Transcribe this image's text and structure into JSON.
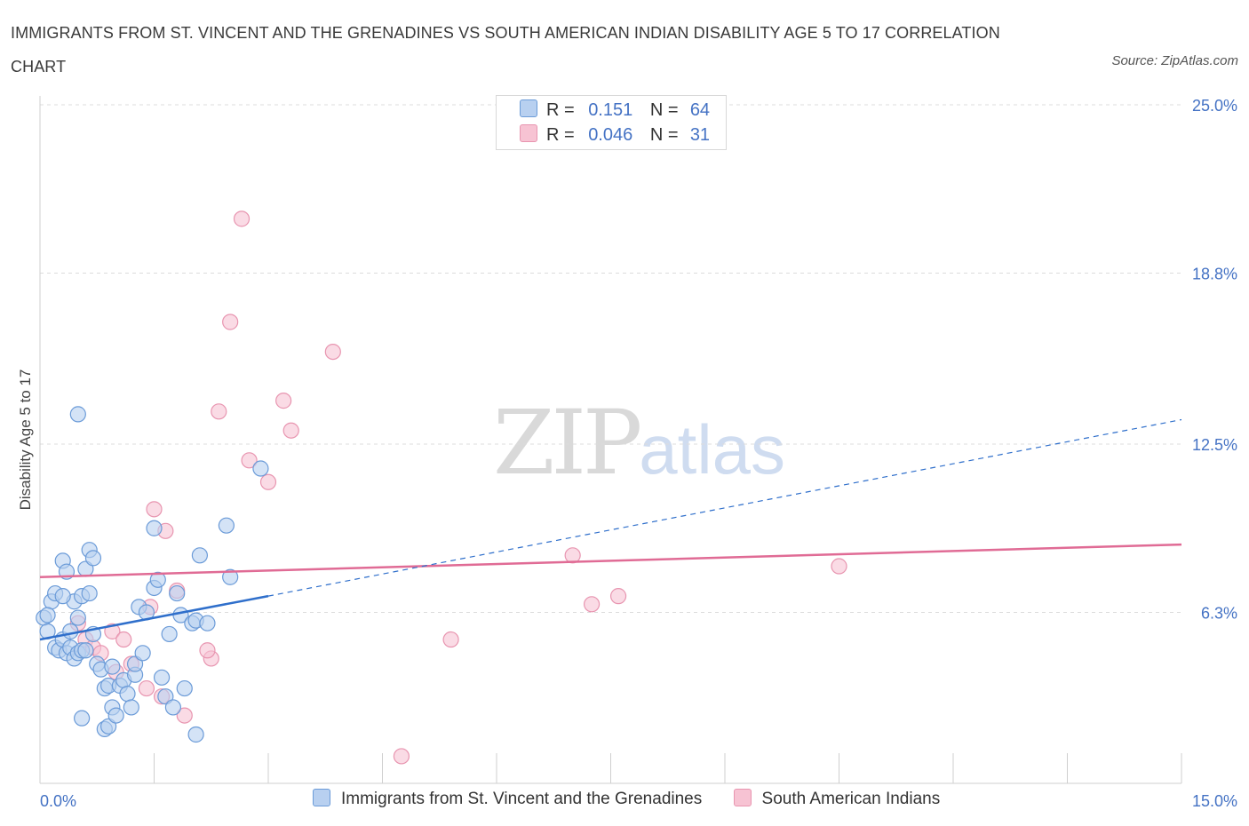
{
  "title": "IMMIGRANTS FROM ST. VINCENT AND THE GRENADINES VS SOUTH AMERICAN INDIAN DISABILITY AGE 5 TO 17 CORRELATION CHART",
  "source": "Source: ZipAtlas.com",
  "watermark": {
    "zip": "ZIP",
    "atlas": "atlas"
  },
  "legend": {
    "rows": [
      {
        "r_label": "R =",
        "r_value": "0.151",
        "n_label": "N =",
        "n_value": "64"
      },
      {
        "r_label": "R =",
        "r_value": "0.046",
        "n_label": "N =",
        "n_value": "31"
      }
    ]
  },
  "colors": {
    "blue_fill": "#b8d0f0",
    "blue_stroke": "#6b9bd8",
    "blue_line": "#2f6fcb",
    "pink_fill": "#f7c3d3",
    "pink_stroke": "#e895b0",
    "pink_line": "#e06b95",
    "grid": "#dcdcdc",
    "tick_text": "#4472c4"
  },
  "chart_data": {
    "type": "scatter",
    "title": "IMMIGRANTS FROM ST. VINCENT AND THE GRENADINES VS SOUTH AMERICAN INDIAN DISABILITY AGE 5 TO 17 CORRELATION CHART",
    "xlabel": "",
    "ylabel": "Disability Age 5 to 17",
    "xlim": [
      0,
      15
    ],
    "ylim": [
      0,
      25
    ],
    "x_tick_labels": [
      {
        "value": 0,
        "label": "0.0%"
      },
      {
        "value": 15,
        "label": "15.0%"
      }
    ],
    "y_tick_labels": [
      {
        "value": 6.3,
        "label": "6.3%"
      },
      {
        "value": 12.5,
        "label": "12.5%"
      },
      {
        "value": 18.8,
        "label": "18.8%"
      },
      {
        "value": 25.0,
        "label": "25.0%"
      }
    ],
    "grid": true,
    "legend_position": "top-center",
    "series": [
      {
        "name": "Immigrants from St. Vincent and the Grenadines",
        "color": "#6b9bd8",
        "points": [
          [
            0.05,
            6.1
          ],
          [
            0.1,
            5.6
          ],
          [
            0.15,
            6.7
          ],
          [
            0.1,
            6.2
          ],
          [
            0.2,
            5.0
          ],
          [
            0.25,
            4.9
          ],
          [
            0.3,
            5.3
          ],
          [
            0.35,
            4.8
          ],
          [
            0.4,
            5.0
          ],
          [
            0.45,
            4.6
          ],
          [
            0.5,
            4.8
          ],
          [
            0.2,
            7.0
          ],
          [
            0.3,
            8.2
          ],
          [
            0.35,
            7.8
          ],
          [
            0.45,
            6.7
          ],
          [
            0.55,
            6.9
          ],
          [
            0.6,
            7.9
          ],
          [
            0.65,
            7.0
          ],
          [
            0.5,
            6.1
          ],
          [
            0.55,
            4.9
          ],
          [
            0.7,
            5.5
          ],
          [
            0.75,
            4.4
          ],
          [
            0.8,
            4.2
          ],
          [
            0.85,
            3.5
          ],
          [
            0.9,
            3.6
          ],
          [
            0.95,
            2.8
          ],
          [
            1.05,
            3.6
          ],
          [
            0.95,
            4.3
          ],
          [
            1.1,
            3.8
          ],
          [
            1.15,
            3.3
          ],
          [
            1.2,
            2.8
          ],
          [
            1.25,
            4.0
          ],
          [
            1.3,
            6.5
          ],
          [
            1.4,
            6.3
          ],
          [
            1.5,
            7.2
          ],
          [
            1.55,
            7.5
          ],
          [
            1.6,
            3.9
          ],
          [
            1.65,
            3.2
          ],
          [
            1.7,
            5.5
          ],
          [
            1.75,
            2.8
          ],
          [
            1.8,
            7.0
          ],
          [
            1.85,
            6.2
          ],
          [
            1.9,
            3.5
          ],
          [
            2.0,
            5.9
          ],
          [
            2.05,
            6.0
          ],
          [
            2.1,
            8.4
          ],
          [
            2.2,
            5.9
          ],
          [
            2.45,
            9.5
          ],
          [
            2.5,
            7.6
          ],
          [
            2.9,
            11.6
          ],
          [
            0.65,
            8.6
          ],
          [
            0.7,
            8.3
          ],
          [
            1.5,
            9.4
          ],
          [
            0.5,
            13.6
          ],
          [
            1.25,
            4.4
          ],
          [
            0.85,
            2.0
          ],
          [
            0.9,
            2.1
          ],
          [
            1.0,
            2.5
          ],
          [
            0.55,
            2.4
          ],
          [
            2.05,
            1.8
          ],
          [
            1.35,
            4.8
          ],
          [
            0.4,
            5.6
          ],
          [
            0.6,
            4.9
          ],
          [
            0.3,
            6.9
          ]
        ]
      },
      {
        "name": "South American Indians",
        "color": "#e895b0",
        "points": [
          [
            2.65,
            20.8
          ],
          [
            2.5,
            17.0
          ],
          [
            3.85,
            15.9
          ],
          [
            3.2,
            14.1
          ],
          [
            2.35,
            13.7
          ],
          [
            3.3,
            13.0
          ],
          [
            2.75,
            11.9
          ],
          [
            3.0,
            11.1
          ],
          [
            1.5,
            10.1
          ],
          [
            1.65,
            9.3
          ],
          [
            1.8,
            7.1
          ],
          [
            1.45,
            6.5
          ],
          [
            1.2,
            4.4
          ],
          [
            0.95,
            5.6
          ],
          [
            1.1,
            5.3
          ],
          [
            0.5,
            5.9
          ],
          [
            0.6,
            5.3
          ],
          [
            0.7,
            5.0
          ],
          [
            0.8,
            4.8
          ],
          [
            1.0,
            4.1
          ],
          [
            1.4,
            3.5
          ],
          [
            1.6,
            3.2
          ],
          [
            1.9,
            2.5
          ],
          [
            2.25,
            4.6
          ],
          [
            2.2,
            4.9
          ],
          [
            5.4,
            5.3
          ],
          [
            4.75,
            1.0
          ],
          [
            7.0,
            8.4
          ],
          [
            7.25,
            6.6
          ],
          [
            7.6,
            6.9
          ],
          [
            10.5,
            8.0
          ]
        ]
      }
    ],
    "trendlines": [
      {
        "series": "Immigrants from St. Vincent and the Grenadines",
        "solid": [
          [
            0,
            5.3
          ],
          [
            3.0,
            6.9
          ]
        ],
        "dashed": [
          [
            3.0,
            6.9
          ],
          [
            15,
            13.4
          ]
        ]
      },
      {
        "series": "South American Indians",
        "solid": [
          [
            0,
            7.6
          ],
          [
            15,
            8.8
          ]
        ]
      }
    ]
  }
}
